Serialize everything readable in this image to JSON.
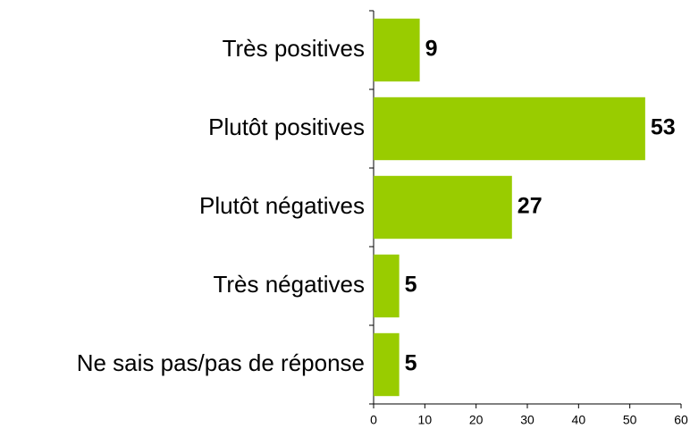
{
  "chart_data": {
    "type": "bar",
    "orientation": "horizontal",
    "categories": [
      "Très positives",
      "Plutôt positives",
      "Plutôt négatives",
      "Très négatives",
      "Ne sais pas/pas de réponse"
    ],
    "values": [
      9,
      53,
      27,
      5,
      5
    ],
    "color": "#99cc00",
    "xlim": [
      0,
      60
    ],
    "xticks": [
      0,
      10,
      20,
      30,
      40,
      50,
      60
    ],
    "grid": false
  }
}
